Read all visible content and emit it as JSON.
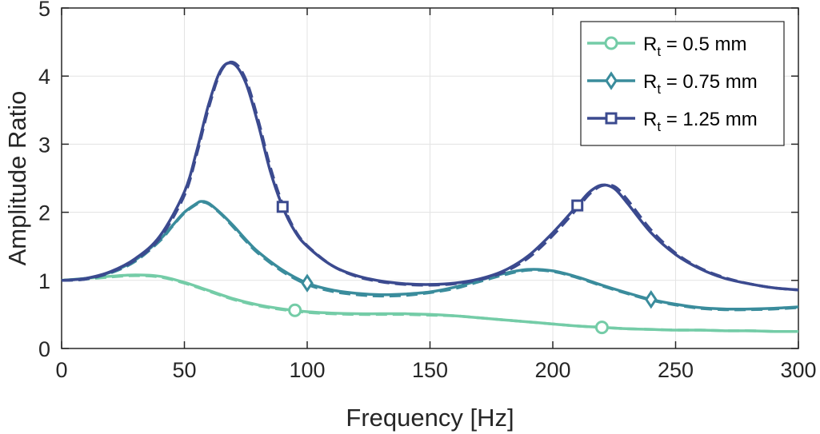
{
  "chart_data": {
    "type": "line",
    "xlabel": "Frequency [Hz]",
    "ylabel": "Amplitude Ratio",
    "xlim": [
      0,
      300
    ],
    "ylim": [
      0,
      5
    ],
    "xticks": [
      0,
      50,
      100,
      150,
      200,
      250,
      300
    ],
    "yticks": [
      0,
      1,
      2,
      3,
      4,
      5
    ],
    "xtick_labels": [
      "0",
      "50",
      "100",
      "150",
      "200",
      "250",
      "300"
    ],
    "ytick_labels": [
      "0",
      "1",
      "2",
      "3",
      "4",
      "5"
    ],
    "grid": true,
    "legend_position": "top-right",
    "series": [
      {
        "name_base": "R",
        "name_sub": "t",
        "name_rest": " = 0.5 mm",
        "color": "#74cca7",
        "marker": "circle",
        "markers_x": [
          95,
          220
        ],
        "x": [
          0,
          10,
          20,
          30,
          40,
          50,
          60,
          70,
          80,
          90,
          100,
          110,
          120,
          130,
          140,
          150,
          160,
          170,
          180,
          190,
          200,
          210,
          220,
          230,
          240,
          250,
          260,
          270,
          280,
          290,
          300
        ],
        "y": [
          1.0,
          1.03,
          1.06,
          1.08,
          1.06,
          0.97,
          0.85,
          0.73,
          0.64,
          0.58,
          0.54,
          0.52,
          0.51,
          0.51,
          0.51,
          0.5,
          0.48,
          0.45,
          0.42,
          0.39,
          0.36,
          0.33,
          0.31,
          0.29,
          0.28,
          0.27,
          0.27,
          0.26,
          0.26,
          0.25,
          0.25
        ],
        "y_dashed": [
          1.0,
          1.02,
          1.05,
          1.07,
          1.05,
          0.96,
          0.84,
          0.72,
          0.63,
          0.57,
          0.53,
          0.51,
          0.5,
          0.5,
          0.5,
          0.49,
          0.48,
          0.45,
          0.42,
          0.39,
          0.36,
          0.33,
          0.31,
          0.29,
          0.28,
          0.27,
          0.27,
          0.26,
          0.26,
          0.25,
          0.25
        ]
      },
      {
        "name_base": "R",
        "name_sub": "t",
        "name_rest": " = 0.75 mm",
        "color": "#3a8c9c",
        "marker": "diamond",
        "markers_x": [
          100,
          240
        ],
        "x": [
          0,
          10,
          20,
          30,
          40,
          45,
          50,
          55,
          57,
          60,
          65,
          70,
          75,
          80,
          90,
          100,
          110,
          120,
          130,
          140,
          150,
          160,
          170,
          180,
          190,
          200,
          210,
          220,
          230,
          240,
          250,
          260,
          270,
          280,
          290,
          300
        ],
        "y": [
          1.0,
          1.03,
          1.12,
          1.3,
          1.6,
          1.8,
          2.0,
          2.13,
          2.16,
          2.13,
          1.98,
          1.8,
          1.6,
          1.42,
          1.15,
          0.96,
          0.86,
          0.81,
          0.79,
          0.8,
          0.83,
          0.9,
          1.0,
          1.1,
          1.16,
          1.14,
          1.05,
          0.93,
          0.82,
          0.72,
          0.65,
          0.6,
          0.58,
          0.58,
          0.59,
          0.61
        ],
        "y_dashed": [
          1.0,
          1.02,
          1.11,
          1.28,
          1.58,
          1.79,
          1.99,
          2.12,
          2.15,
          2.12,
          1.97,
          1.78,
          1.58,
          1.4,
          1.13,
          0.94,
          0.84,
          0.79,
          0.77,
          0.78,
          0.82,
          0.88,
          0.98,
          1.08,
          1.15,
          1.13,
          1.04,
          0.92,
          0.81,
          0.71,
          0.64,
          0.59,
          0.57,
          0.57,
          0.58,
          0.6
        ]
      },
      {
        "name_base": "R",
        "name_sub": "t",
        "name_rest": " = 1.25 mm",
        "color": "#3b4a8f",
        "marker": "square",
        "markers_x": [
          90,
          210
        ],
        "x": [
          0,
          10,
          20,
          30,
          40,
          50,
          55,
          60,
          65,
          70,
          75,
          80,
          85,
          90,
          95,
          100,
          110,
          120,
          130,
          140,
          150,
          160,
          170,
          180,
          190,
          200,
          210,
          215,
          220,
          225,
          230,
          240,
          250,
          260,
          270,
          280,
          290,
          300
        ],
        "y": [
          1.0,
          1.03,
          1.13,
          1.32,
          1.65,
          2.3,
          2.9,
          3.6,
          4.1,
          4.18,
          3.9,
          3.3,
          2.6,
          2.08,
          1.72,
          1.5,
          1.22,
          1.07,
          0.99,
          0.95,
          0.94,
          0.96,
          1.02,
          1.14,
          1.36,
          1.7,
          2.1,
          2.3,
          2.4,
          2.35,
          2.15,
          1.7,
          1.38,
          1.17,
          1.03,
          0.95,
          0.89,
          0.86
        ],
        "y_dashed": [
          1.0,
          1.02,
          1.12,
          1.3,
          1.62,
          2.25,
          2.85,
          3.55,
          4.08,
          4.2,
          3.95,
          3.36,
          2.66,
          2.12,
          1.74,
          1.51,
          1.22,
          1.06,
          0.98,
          0.94,
          0.93,
          0.95,
          1.01,
          1.12,
          1.33,
          1.66,
          2.06,
          2.27,
          2.39,
          2.38,
          2.2,
          1.74,
          1.4,
          1.18,
          1.04,
          0.95,
          0.89,
          0.86
        ]
      }
    ]
  }
}
